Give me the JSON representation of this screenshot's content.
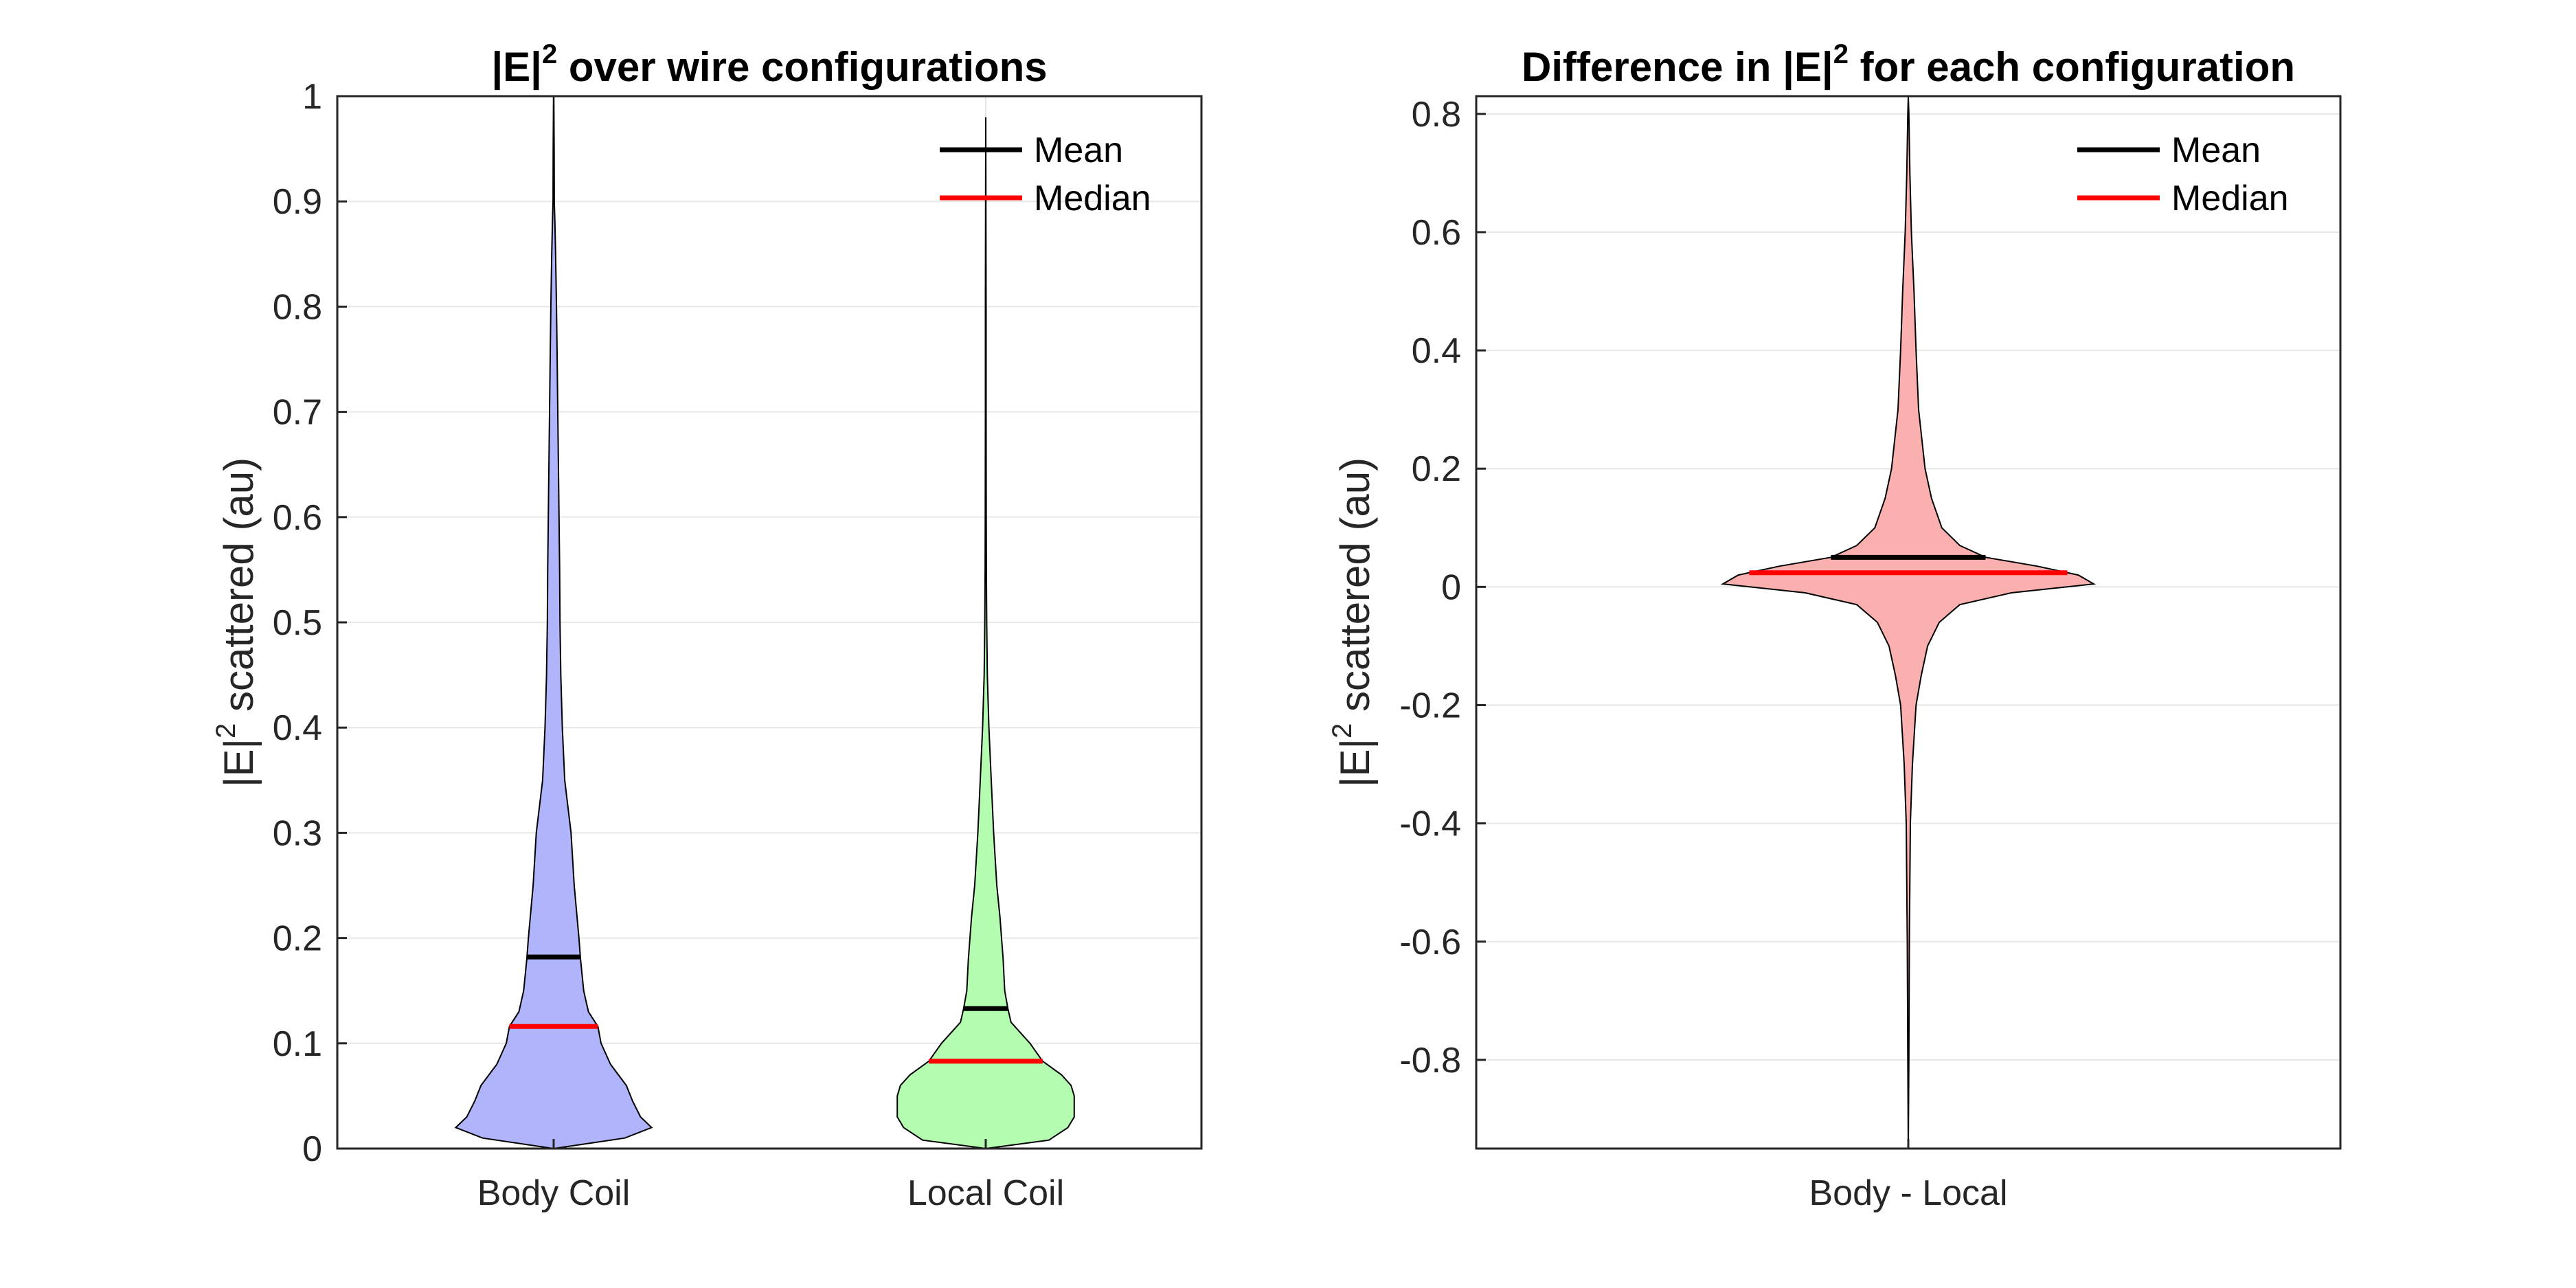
{
  "chart_data": [
    {
      "type": "violin",
      "title_base": "|E|",
      "title_sup": "2",
      "title_rest": " over wire configurations",
      "ylabel_base": "|E|",
      "ylabel_sup": "2",
      "ylabel_rest": " scattered (au)",
      "ylim": [
        0,
        1
      ],
      "yticks": [
        "0",
        "0.1",
        "0.2",
        "0.3",
        "0.4",
        "0.5",
        "0.6",
        "0.7",
        "0.8",
        "0.9",
        "1"
      ],
      "ytick_values": [
        0,
        0.1,
        0.2,
        0.3,
        0.4,
        0.5,
        0.6,
        0.7,
        0.8,
        0.9,
        1
      ],
      "categories": [
        "Body Coil",
        "Local Coil"
      ],
      "legend": {
        "position": "top-right",
        "entries": [
          {
            "label": "Mean",
            "color": "#000000"
          },
          {
            "label": "Median",
            "color": "#ff0000"
          }
        ]
      },
      "series": [
        {
          "name": "Body Coil",
          "fill": "#b0b4fb",
          "mean": 0.182,
          "median": 0.116,
          "profile": [
            [
              0.0,
              0.0
            ],
            [
              0.01,
              0.45
            ],
            [
              0.02,
              0.62
            ],
            [
              0.03,
              0.55
            ],
            [
              0.045,
              0.5
            ],
            [
              0.06,
              0.46
            ],
            [
              0.08,
              0.36
            ],
            [
              0.1,
              0.3
            ],
            [
              0.116,
              0.28
            ],
            [
              0.13,
              0.22
            ],
            [
              0.15,
              0.19
            ],
            [
              0.18,
              0.17
            ],
            [
              0.2,
              0.16
            ],
            [
              0.25,
              0.13
            ],
            [
              0.3,
              0.11
            ],
            [
              0.35,
              0.07
            ],
            [
              0.4,
              0.055
            ],
            [
              0.45,
              0.045
            ],
            [
              0.5,
              0.04
            ],
            [
              0.55,
              0.038
            ],
            [
              0.6,
              0.034
            ],
            [
              0.65,
              0.03
            ],
            [
              0.7,
              0.026
            ],
            [
              0.75,
              0.022
            ],
            [
              0.8,
              0.018
            ],
            [
              0.85,
              0.012
            ],
            [
              0.88,
              0.008
            ],
            [
              0.9,
              0.004
            ],
            [
              0.95,
              0.003
            ],
            [
              1.0,
              0.001
            ]
          ]
        },
        {
          "name": "Local Coil",
          "fill": "#b3fcb0",
          "mean": 0.133,
          "median": 0.083,
          "profile": [
            [
              0.0,
              0.0
            ],
            [
              0.008,
              0.4
            ],
            [
              0.02,
              0.52
            ],
            [
              0.03,
              0.56
            ],
            [
              0.05,
              0.56
            ],
            [
              0.06,
              0.54
            ],
            [
              0.07,
              0.48
            ],
            [
              0.083,
              0.36
            ],
            [
              0.1,
              0.28
            ],
            [
              0.12,
              0.16
            ],
            [
              0.133,
              0.14
            ],
            [
              0.15,
              0.12
            ],
            [
              0.18,
              0.11
            ],
            [
              0.2,
              0.1
            ],
            [
              0.22,
              0.09
            ],
            [
              0.25,
              0.07
            ],
            [
              0.3,
              0.05
            ],
            [
              0.35,
              0.035
            ],
            [
              0.4,
              0.02
            ],
            [
              0.45,
              0.01
            ],
            [
              0.5,
              0.006
            ],
            [
              0.55,
              0.004
            ],
            [
              0.6,
              0.003
            ],
            [
              0.7,
              0.002
            ],
            [
              0.8,
              0.002
            ],
            [
              0.9,
              0.001
            ],
            [
              0.98,
              0.0
            ]
          ]
        }
      ]
    },
    {
      "type": "violin",
      "title_base": "Difference in |E|",
      "title_sup": "2",
      "title_rest": " for each configuration",
      "ylabel_base": "|E|",
      "ylabel_sup": "2",
      "ylabel_rest": " scattered (au)",
      "ylim": [
        -0.95,
        0.83
      ],
      "yticks": [
        "-0.8",
        "-0.6",
        "-0.4",
        "-0.2",
        "0",
        "0.2",
        "0.4",
        "0.6",
        "0.8"
      ],
      "ytick_values": [
        -0.8,
        -0.6,
        -0.4,
        -0.2,
        0,
        0.2,
        0.4,
        0.6,
        0.8
      ],
      "categories": [
        "Body - Local"
      ],
      "legend": {
        "position": "top-right",
        "entries": [
          {
            "label": "Mean",
            "color": "#000000"
          },
          {
            "label": "Median",
            "color": "#ff0000"
          }
        ]
      },
      "series": [
        {
          "name": "Body - Local",
          "fill": "#fbb0b0",
          "mean": 0.05,
          "median": 0.024,
          "profile": [
            [
              -0.95,
              0.0
            ],
            [
              -0.8,
              0.002
            ],
            [
              -0.6,
              0.004
            ],
            [
              -0.4,
              0.008
            ],
            [
              -0.3,
              0.016
            ],
            [
              -0.2,
              0.03
            ],
            [
              -0.15,
              0.05
            ],
            [
              -0.1,
              0.075
            ],
            [
              -0.06,
              0.12
            ],
            [
              -0.03,
              0.2
            ],
            [
              -0.01,
              0.4
            ],
            [
              0.005,
              0.72
            ],
            [
              0.02,
              0.66
            ],
            [
              0.035,
              0.5
            ],
            [
              0.05,
              0.3
            ],
            [
              0.07,
              0.2
            ],
            [
              0.1,
              0.13
            ],
            [
              0.15,
              0.09
            ],
            [
              0.2,
              0.065
            ],
            [
              0.3,
              0.04
            ],
            [
              0.4,
              0.03
            ],
            [
              0.5,
              0.022
            ],
            [
              0.6,
              0.012
            ],
            [
              0.7,
              0.006
            ],
            [
              0.8,
              0.002
            ],
            [
              0.83,
              0.0
            ]
          ]
        }
      ]
    }
  ]
}
